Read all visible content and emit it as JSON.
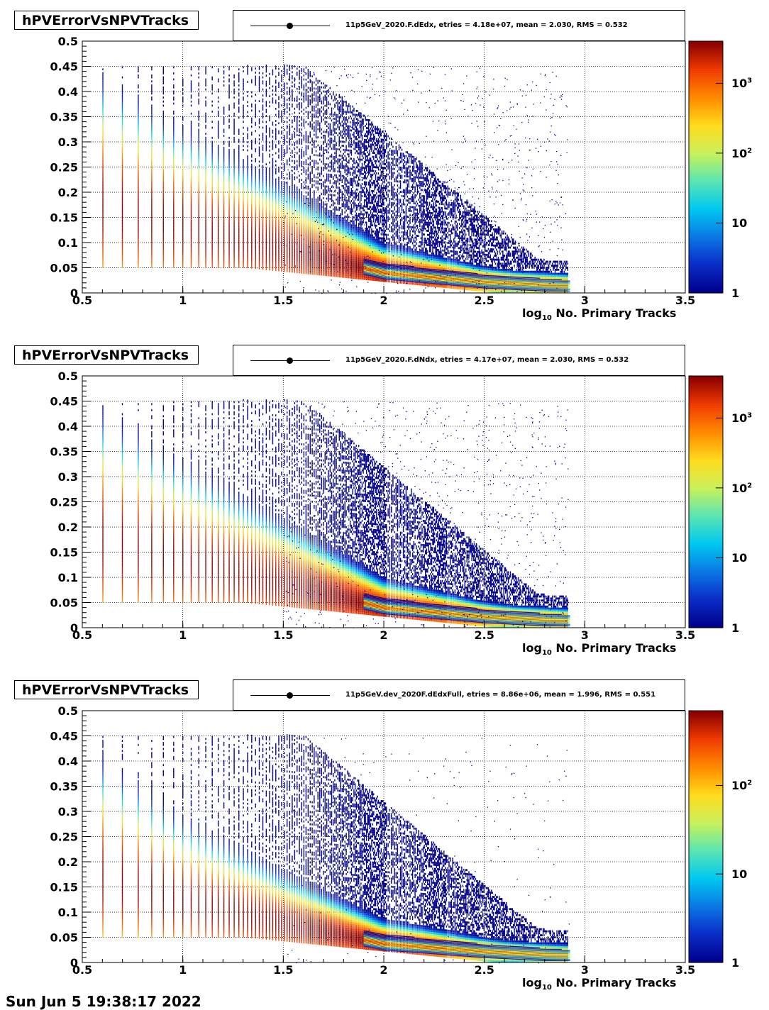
{
  "panels": [
    {
      "title": "hPVErrorVsNPVTracks",
      "legend": "11p5GeV_2020.F.dEdx, etries =   4.18e+07, mean =   2.030, RMS =   0.532",
      "xlabel_pre": "log",
      "xlabel_sub": "10",
      "xlabel_post": " No. Primary Tracks",
      "zticks": [
        {
          "base": "1",
          "exp": ""
        },
        {
          "base": "10",
          "exp": ""
        },
        {
          "base": "10",
          "exp": "2"
        },
        {
          "base": "10",
          "exp": "3"
        }
      ]
    },
    {
      "title": "hPVErrorVsNPVTracks",
      "legend": "11p5GeV_2020.F.dNdx, etries =   4.17e+07, mean =   2.030, RMS =   0.532",
      "xlabel_pre": "log",
      "xlabel_sub": "10",
      "xlabel_post": " No. Primary Tracks",
      "zticks": [
        {
          "base": "1",
          "exp": ""
        },
        {
          "base": "10",
          "exp": ""
        },
        {
          "base": "10",
          "exp": "2"
        },
        {
          "base": "10",
          "exp": "3"
        }
      ]
    },
    {
      "title": "hPVErrorVsNPVTracks",
      "legend": "11p5GeV.dev_2020F.dEdxFull, etries =   8.86e+06, mean =   1.996, RMS =   0.551",
      "xlabel_pre": "log",
      "xlabel_sub": "10",
      "xlabel_post": " No. Primary Tracks",
      "zticks": [
        {
          "base": "1",
          "exp": ""
        },
        {
          "base": "10",
          "exp": ""
        },
        {
          "base": "10",
          "exp": "2"
        }
      ]
    }
  ],
  "footer": "Sun Jun  5 19:38:17 2022",
  "chart_data": [
    {
      "type": "heatmap",
      "title": "hPVErrorVsNPVTracks",
      "xlabel": "log10 No. Primary Tracks",
      "ylabel": "",
      "xlim": [
        0.5,
        3.5
      ],
      "ylim": [
        0,
        0.5
      ],
      "xticks": [
        "0.5",
        "1",
        "1.5",
        "2",
        "2.5",
        "3",
        "3.5"
      ],
      "yticks": [
        "0",
        "0.05",
        "0.1",
        "0.15",
        "0.2",
        "0.25",
        "0.3",
        "0.35",
        "0.4",
        "0.45",
        "0.5"
      ],
      "z_scale": "log",
      "zlim": [
        1,
        4000
      ],
      "grid": true,
      "ridge": {
        "x": [
          0.6,
          1.0,
          1.5,
          2.0,
          2.5,
          2.9
        ],
        "y": [
          0.17,
          0.13,
          0.085,
          0.038,
          0.02,
          0.012
        ]
      },
      "x_max": 2.92,
      "entries": "4.18e+07",
      "mean": 2.03,
      "rms": 0.532
    },
    {
      "type": "heatmap",
      "title": "hPVErrorVsNPVTracks",
      "xlabel": "log10 No. Primary Tracks",
      "ylabel": "",
      "xlim": [
        0.5,
        3.5
      ],
      "ylim": [
        0,
        0.5
      ],
      "xticks": [
        "0.5",
        "1",
        "1.5",
        "2",
        "2.5",
        "3",
        "3.5"
      ],
      "yticks": [
        "0",
        "0.05",
        "0.1",
        "0.15",
        "0.2",
        "0.25",
        "0.3",
        "0.35",
        "0.4",
        "0.45",
        "0.5"
      ],
      "z_scale": "log",
      "zlim": [
        1,
        4000
      ],
      "grid": true,
      "ridge": {
        "x": [
          0.6,
          1.0,
          1.5,
          2.0,
          2.5,
          2.9
        ],
        "y": [
          0.17,
          0.13,
          0.085,
          0.038,
          0.02,
          0.012
        ]
      },
      "x_max": 2.92,
      "entries": "4.17e+07",
      "mean": 2.03,
      "rms": 0.532
    },
    {
      "type": "heatmap",
      "title": "hPVErrorVsNPVTracks",
      "xlabel": "log10 No. Primary Tracks",
      "ylabel": "",
      "xlim": [
        0.5,
        3.5
      ],
      "ylim": [
        0,
        0.5
      ],
      "xticks": [
        "0.5",
        "1",
        "1.5",
        "2",
        "2.5",
        "3",
        "3.5"
      ],
      "yticks": [
        "0",
        "0.05",
        "0.1",
        "0.15",
        "0.2",
        "0.25",
        "0.3",
        "0.35",
        "0.4",
        "0.45",
        "0.5"
      ],
      "z_scale": "log",
      "zlim": [
        1,
        700
      ],
      "grid": true,
      "ridge": {
        "x": [
          0.6,
          1.0,
          1.5,
          2.0,
          2.5,
          2.9
        ],
        "y": [
          0.17,
          0.12,
          0.075,
          0.035,
          0.02,
          0.012
        ]
      },
      "x_max": 2.92,
      "entries": "8.86e+06",
      "mean": 1.996,
      "rms": 0.551
    }
  ],
  "colors": {
    "palette": [
      "#00008b",
      "#0a2dc8",
      "#0a78e6",
      "#00c8f0",
      "#5ae6b4",
      "#c8f05a",
      "#ffdc1e",
      "#ff8c00",
      "#f03c00",
      "#8b0000"
    ],
    "grid": "#000000"
  }
}
